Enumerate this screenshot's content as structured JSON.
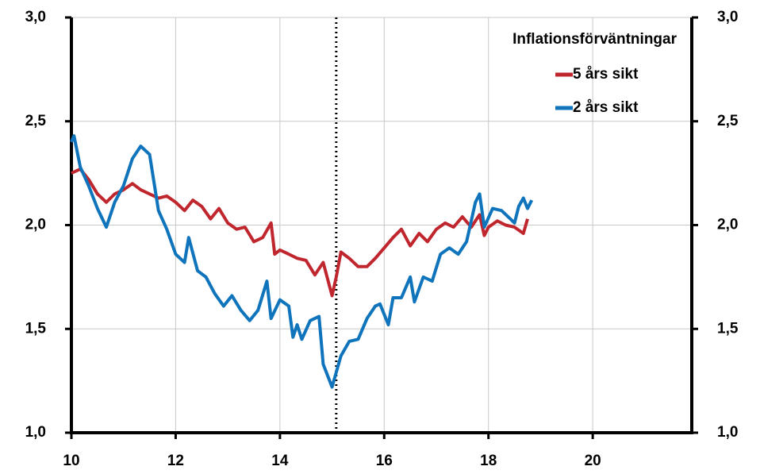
{
  "chart_data": {
    "type": "line",
    "legend_title": "Inflationsförväntningar",
    "legend": "top-right",
    "grid": true,
    "xlim": [
      10,
      21.9
    ],
    "xticks": [
      10,
      12,
      14,
      16,
      18,
      20
    ],
    "ylim": [
      1.0,
      3.0
    ],
    "yticks": [
      {
        "value": 1.0,
        "label": "1,0"
      },
      {
        "value": 1.5,
        "label": "1,5"
      },
      {
        "value": 2.0,
        "label": "2,0"
      },
      {
        "value": 2.5,
        "label": "2,5"
      },
      {
        "value": 3.0,
        "label": "3,0"
      }
    ],
    "y2lim": [
      1.0,
      3.0
    ],
    "y2ticks": [
      {
        "value": 1.0,
        "label": "1,0"
      },
      {
        "value": 1.5,
        "label": "1,5"
      },
      {
        "value": 2.0,
        "label": "2,0"
      },
      {
        "value": 2.5,
        "label": "2,5"
      },
      {
        "value": 3.0,
        "label": "3,0"
      }
    ],
    "vline": 15.08,
    "series": [
      {
        "name": "5 års sikt",
        "color": "#c0262d",
        "x": [
          10.0,
          10.17,
          10.33,
          10.5,
          10.67,
          10.83,
          11.0,
          11.17,
          11.33,
          11.5,
          11.67,
          11.83,
          12.0,
          12.17,
          12.33,
          12.5,
          12.67,
          12.83,
          13.0,
          13.17,
          13.33,
          13.5,
          13.67,
          13.83,
          13.9,
          14.0,
          14.17,
          14.33,
          14.5,
          14.67,
          14.83,
          15.0,
          15.08,
          15.17,
          15.33,
          15.5,
          15.67,
          15.83,
          16.0,
          16.17,
          16.33,
          16.5,
          16.67,
          16.83,
          17.0,
          17.17,
          17.33,
          17.5,
          17.67,
          17.83,
          17.92,
          18.0,
          18.17,
          18.33,
          18.5,
          18.67,
          18.75
        ],
        "values": [
          2.25,
          2.27,
          2.22,
          2.15,
          2.11,
          2.15,
          2.17,
          2.2,
          2.17,
          2.15,
          2.13,
          2.14,
          2.11,
          2.07,
          2.12,
          2.09,
          2.03,
          2.08,
          2.01,
          1.98,
          1.99,
          1.92,
          1.94,
          2.01,
          1.86,
          1.88,
          1.86,
          1.84,
          1.83,
          1.76,
          1.82,
          1.66,
          1.75,
          1.87,
          1.84,
          1.8,
          1.8,
          1.84,
          1.89,
          1.94,
          1.98,
          1.9,
          1.96,
          1.92,
          1.98,
          2.01,
          1.99,
          2.04,
          1.99,
          2.05,
          1.95,
          1.99,
          2.02,
          2.0,
          1.99,
          1.96,
          2.03
        ]
      },
      {
        "name": "2 års sikt",
        "color": "#0f74bb",
        "x": [
          10.0,
          10.05,
          10.17,
          10.33,
          10.5,
          10.67,
          10.83,
          11.0,
          11.17,
          11.33,
          11.5,
          11.67,
          11.83,
          12.0,
          12.17,
          12.25,
          12.42,
          12.58,
          12.75,
          12.92,
          13.08,
          13.25,
          13.42,
          13.58,
          13.75,
          13.83,
          14.0,
          14.17,
          14.25,
          14.33,
          14.42,
          14.58,
          14.75,
          14.83,
          15.0,
          15.17,
          15.33,
          15.5,
          15.67,
          15.83,
          15.92,
          16.08,
          16.17,
          16.33,
          16.5,
          16.58,
          16.75,
          16.92,
          17.08,
          17.25,
          17.42,
          17.58,
          17.75,
          17.83,
          17.92,
          18.08,
          18.25,
          18.42,
          18.5,
          18.58,
          18.67,
          18.75,
          18.83
        ],
        "values": [
          2.4,
          2.43,
          2.28,
          2.19,
          2.08,
          1.99,
          2.11,
          2.19,
          2.32,
          2.38,
          2.34,
          2.07,
          1.98,
          1.86,
          1.82,
          1.94,
          1.78,
          1.75,
          1.67,
          1.61,
          1.66,
          1.59,
          1.54,
          1.59,
          1.73,
          1.55,
          1.64,
          1.61,
          1.46,
          1.52,
          1.45,
          1.54,
          1.56,
          1.33,
          1.22,
          1.37,
          1.44,
          1.45,
          1.55,
          1.61,
          1.62,
          1.52,
          1.65,
          1.65,
          1.75,
          1.63,
          1.75,
          1.73,
          1.86,
          1.89,
          1.86,
          1.92,
          2.11,
          2.15,
          1.99,
          2.08,
          2.07,
          2.03,
          2.01,
          2.09,
          2.13,
          2.08,
          2.12
        ]
      }
    ]
  }
}
